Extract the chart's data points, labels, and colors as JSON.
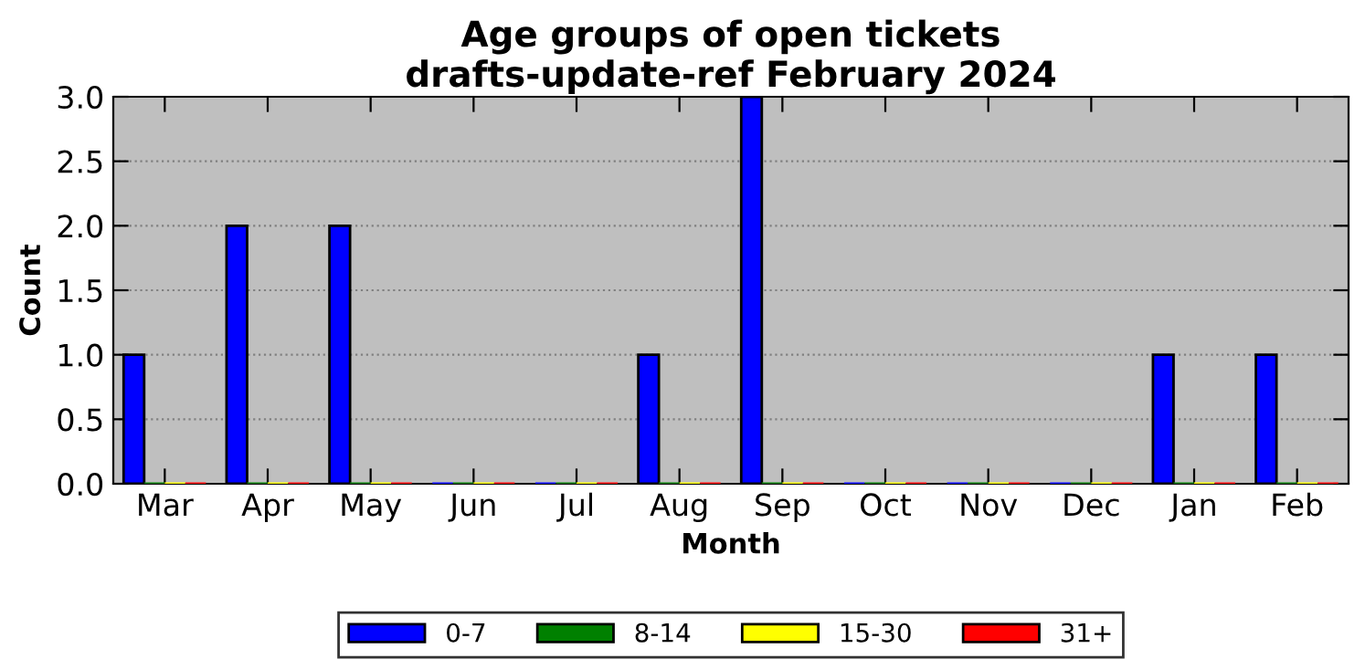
{
  "chart_data": {
    "type": "bar",
    "title": "Age groups of open tickets\ndrafts-update-ref February 2024",
    "xlabel": "Month",
    "ylabel": "Count",
    "categories": [
      "Mar",
      "Apr",
      "May",
      "Jun",
      "Jul",
      "Aug",
      "Sep",
      "Oct",
      "Nov",
      "Dec",
      "Jan",
      "Feb"
    ],
    "series": [
      {
        "name": "0-7",
        "color": "#0000ff",
        "values": [
          1,
          2,
          2,
          0,
          0,
          1,
          3,
          0,
          0,
          0,
          1,
          1
        ]
      },
      {
        "name": "8-14",
        "color": "#008000",
        "values": [
          0,
          0,
          0,
          0,
          0,
          0,
          0,
          0,
          0,
          0,
          0,
          0
        ]
      },
      {
        "name": "15-30",
        "color": "#ffff00",
        "values": [
          0,
          0,
          0,
          0,
          0,
          0,
          0,
          0,
          0,
          0,
          0,
          0
        ]
      },
      {
        "name": "31+",
        "color": "#ff0000",
        "values": [
          0,
          0,
          0,
          0,
          0,
          0,
          0,
          0,
          0,
          0,
          0,
          0
        ]
      }
    ],
    "ylim": [
      0,
      3
    ],
    "yticks": [
      {
        "value": 0,
        "label": "0.0"
      },
      {
        "value": 0.5,
        "label": "0.5"
      },
      {
        "value": 1,
        "label": "1.0"
      },
      {
        "value": 1.5,
        "label": "1.5"
      },
      {
        "value": 2,
        "label": "2.0"
      },
      {
        "value": 2.5,
        "label": "2.5"
      },
      {
        "value": 3,
        "label": "3.0"
      }
    ],
    "grid": "y",
    "legend": "bottom"
  }
}
